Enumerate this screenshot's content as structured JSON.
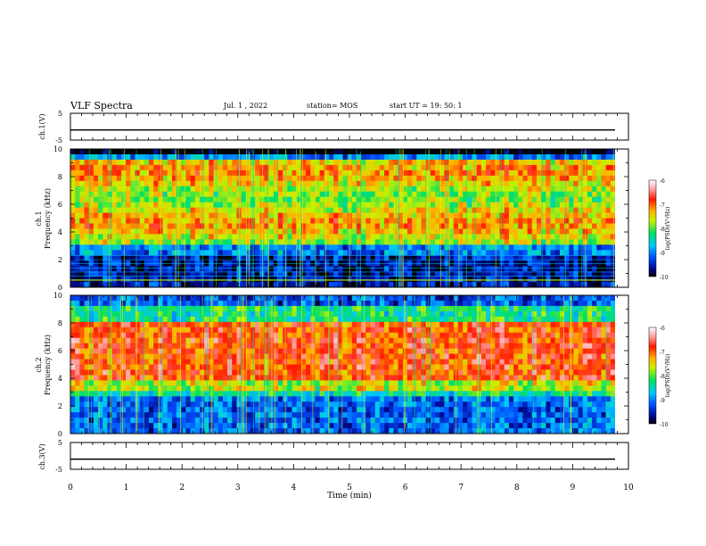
{
  "header": {
    "title": "VLF Spectra",
    "date": "Jul. 1 , 2022",
    "station": "station= MOS",
    "start_ut": "start UT = 19: 50: 1"
  },
  "chart_data": [
    {
      "type": "line",
      "name": "ch1-waveform",
      "ylabel": "ch.1(V)",
      "ylim": [
        -5,
        5
      ],
      "y_ticks": [
        "5",
        "-5"
      ],
      "xlim": [
        0,
        10
      ],
      "baseline_value": -1.2
    },
    {
      "type": "heatmap",
      "name": "ch1-spectrogram",
      "ylabel_line1": "ch.1",
      "ylabel_line2": "Frequency (kHz)",
      "ylim": [
        0,
        10
      ],
      "y_ticks": [
        "0",
        "2",
        "4",
        "6",
        "8",
        "10"
      ],
      "xlim": [
        0,
        9.83
      ],
      "colorbar": {
        "label": "log(PSD)(V²/Hz)",
        "range": [
          -10,
          -6
        ],
        "ticks": [
          "-6",
          "-7",
          "-8",
          "-9",
          "-10"
        ]
      }
    },
    {
      "type": "heatmap",
      "name": "ch2-spectrogram",
      "ylabel_line1": "ch.2",
      "ylabel_line2": "Frequency (kHz)",
      "ylim": [
        0,
        10
      ],
      "y_ticks": [
        "0",
        "2",
        "4",
        "6",
        "8",
        "10"
      ],
      "xlim": [
        0,
        9.83
      ],
      "colorbar": {
        "label": "log(PSD)(V²/Hz)",
        "range": [
          -10,
          -6
        ],
        "ticks": [
          "-6",
          "-7",
          "-8",
          "-9",
          "-10"
        ]
      }
    },
    {
      "type": "line",
      "name": "ch3-waveform",
      "ylabel": "ch.3(V)",
      "ylim": [
        -5,
        5
      ],
      "y_ticks": [
        "5",
        "-5"
      ],
      "xlim": [
        0,
        10
      ],
      "baseline_value": -1.2
    }
  ],
  "x_axis": {
    "label": "Time (min)",
    "ticks": [
      "0",
      "1",
      "2",
      "3",
      "4",
      "5",
      "6",
      "7",
      "8",
      "9",
      "10"
    ]
  }
}
